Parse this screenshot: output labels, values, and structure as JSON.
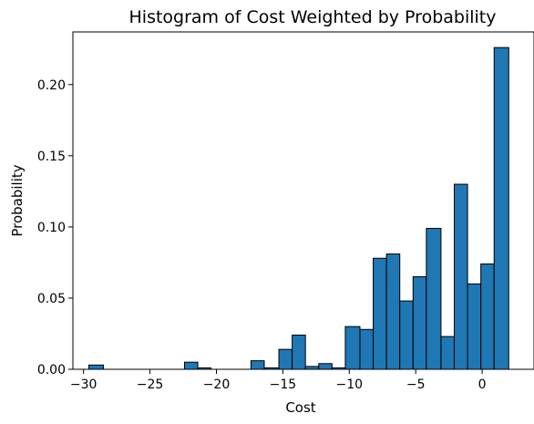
{
  "chart_data": {
    "type": "bar",
    "title": "Histogram of Cost Weighted by Probability",
    "xlabel": "Cost",
    "ylabel": "Probability",
    "xlim": [
      -30.8,
      3.9
    ],
    "ylim": [
      0,
      0.237
    ],
    "bar_color": "#1f77b4",
    "edge_color": "#000000",
    "grid": false,
    "legend": "none",
    "x_ticks": [
      -30,
      -25,
      -20,
      -15,
      -10,
      -5,
      0
    ],
    "x_tick_labels": [
      "−30",
      "−25",
      "−20",
      "−15",
      "−10",
      "−5",
      "0"
    ],
    "y_ticks": [
      0.0,
      0.05,
      0.1,
      0.15,
      0.2
    ],
    "y_tick_labels": [
      "0.00",
      "0.05",
      "0.10",
      "0.15",
      "0.20"
    ],
    "bins": [
      {
        "x0": -29.6,
        "x1": -28.5,
        "value": 0.003
      },
      {
        "x0": -28.5,
        "x1": -27.5,
        "value": 0.0
      },
      {
        "x0": -27.5,
        "x1": -26.5,
        "value": 0.0
      },
      {
        "x0": -26.5,
        "x1": -25.5,
        "value": 0.0
      },
      {
        "x0": -25.5,
        "x1": -24.5,
        "value": 0.0
      },
      {
        "x0": -24.5,
        "x1": -23.5,
        "value": 0.0
      },
      {
        "x0": -23.5,
        "x1": -22.4,
        "value": 0.0
      },
      {
        "x0": -22.4,
        "x1": -21.4,
        "value": 0.005
      },
      {
        "x0": -21.4,
        "x1": -20.4,
        "value": 0.001
      },
      {
        "x0": -20.4,
        "x1": -19.4,
        "value": 0.0
      },
      {
        "x0": -19.4,
        "x1": -18.4,
        "value": 0.0
      },
      {
        "x0": -18.4,
        "x1": -17.4,
        "value": 0.0
      },
      {
        "x0": -17.4,
        "x1": -16.4,
        "value": 0.006
      },
      {
        "x0": -16.4,
        "x1": -15.3,
        "value": 0.001
      },
      {
        "x0": -15.3,
        "x1": -14.3,
        "value": 0.014
      },
      {
        "x0": -14.3,
        "x1": -13.3,
        "value": 0.024
      },
      {
        "x0": -13.3,
        "x1": -12.3,
        "value": 0.002
      },
      {
        "x0": -12.3,
        "x1": -11.3,
        "value": 0.004
      },
      {
        "x0": -11.3,
        "x1": -10.3,
        "value": 0.001
      },
      {
        "x0": -10.3,
        "x1": -9.2,
        "value": 0.03
      },
      {
        "x0": -9.2,
        "x1": -8.2,
        "value": 0.028
      },
      {
        "x0": -8.2,
        "x1": -7.2,
        "value": 0.078
      },
      {
        "x0": -7.2,
        "x1": -6.2,
        "value": 0.081
      },
      {
        "x0": -6.2,
        "x1": -5.2,
        "value": 0.048
      },
      {
        "x0": -5.2,
        "x1": -4.2,
        "value": 0.065
      },
      {
        "x0": -4.2,
        "x1": -3.1,
        "value": 0.099
      },
      {
        "x0": -3.1,
        "x1": -2.1,
        "value": 0.023
      },
      {
        "x0": -2.1,
        "x1": -1.1,
        "value": 0.13
      },
      {
        "x0": -1.1,
        "x1": -0.1,
        "value": 0.06
      },
      {
        "x0": -0.1,
        "x1": 0.9,
        "value": 0.074
      },
      {
        "x0": 0.9,
        "x1": 2.0,
        "value": 0.226
      }
    ]
  }
}
